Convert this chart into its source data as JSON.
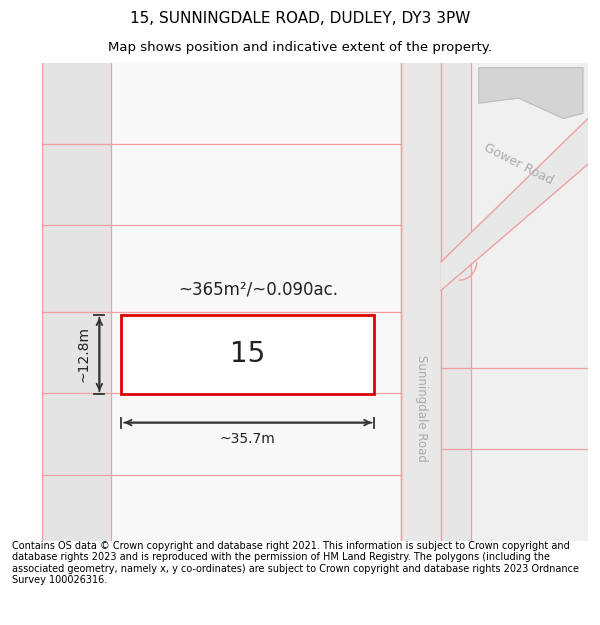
{
  "title": "15, SUNNINGDALE ROAD, DUDLEY, DY3 3PW",
  "subtitle": "Map shows position and indicative extent of the property.",
  "footer": "Contains OS data © Crown copyright and database right 2021. This information is subject to Crown copyright and database rights 2023 and is reproduced with the permission of HM Land Registry. The polygons (including the associated geometry, namely x, y co-ordinates) are subject to Crown copyright and database rights 2023 Ordnance Survey 100026316.",
  "bg_color": "#ffffff",
  "road_color": "#f0a0a0",
  "road_fill": "#e8e8e8",
  "building_fill": "#d4d4d4",
  "area_label": "~365m²/~0.090ac.",
  "width_label": "~35.7m",
  "height_label": "~12.8m",
  "plot_number": "15",
  "road_label": "Sunningdale Road",
  "cross_road_label": "Gower Road",
  "title_fontsize": 11,
  "subtitle_fontsize": 9.5,
  "footer_fontsize": 7.0
}
